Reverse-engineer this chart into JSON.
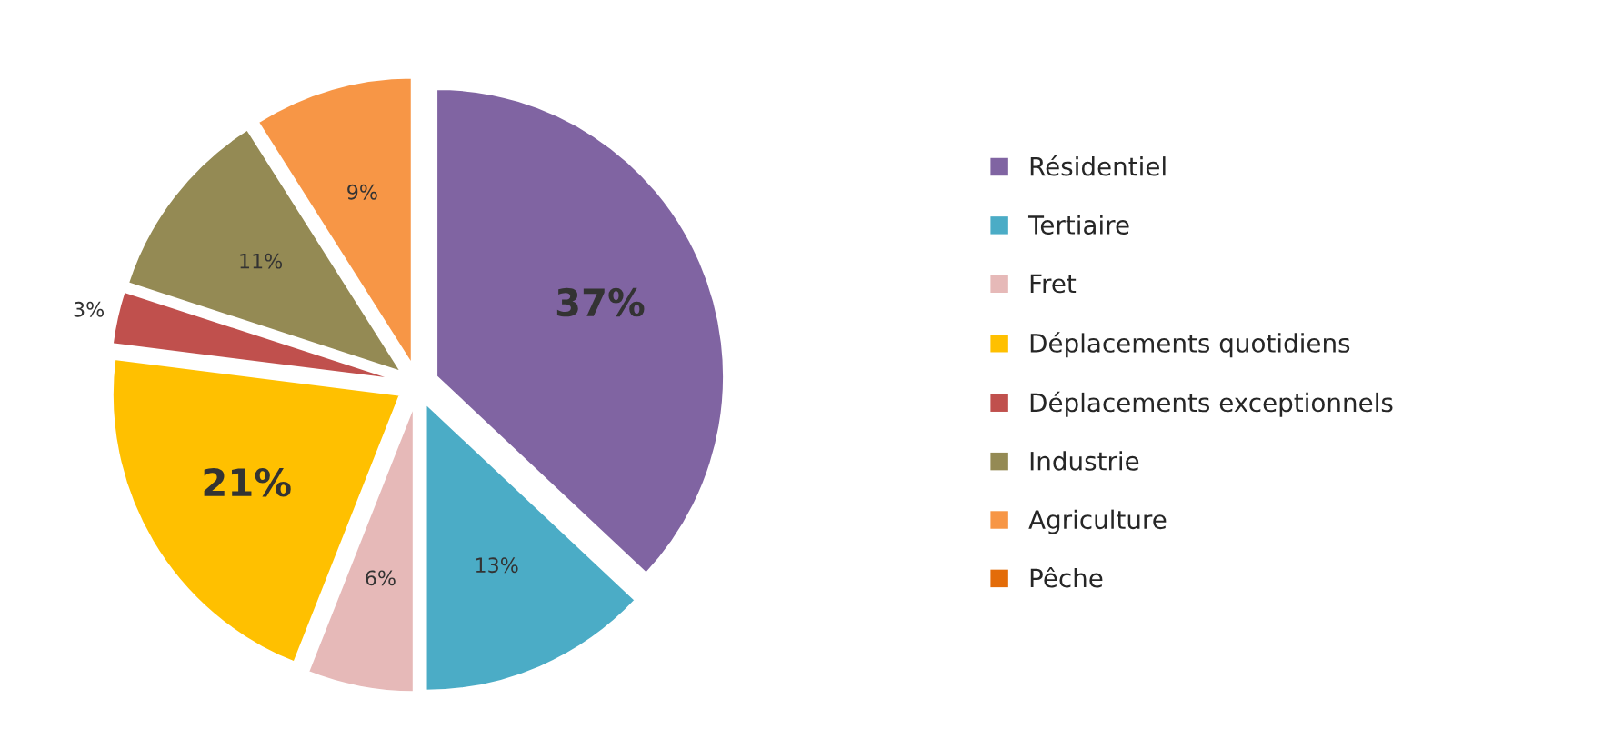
{
  "chart_data": {
    "type": "pie",
    "categories": [
      "Résidentiel",
      "Tertiaire",
      "Fret",
      "Déplacements quotidiens",
      "Déplacements exceptionnels",
      "Industrie",
      "Agriculture",
      "Pêche"
    ],
    "values": [
      37,
      13,
      6,
      21,
      3,
      11,
      9,
      0
    ],
    "value_labels": [
      "37%",
      "13%",
      "6%",
      "21%",
      "3%",
      "11%",
      "9%",
      null
    ],
    "colors": [
      "#8064a2",
      "#4bacc6",
      "#e6b9b8",
      "#ffc000",
      "#c0504d",
      "#948a54",
      "#f79646",
      "#e36c09"
    ],
    "legend": "right"
  }
}
